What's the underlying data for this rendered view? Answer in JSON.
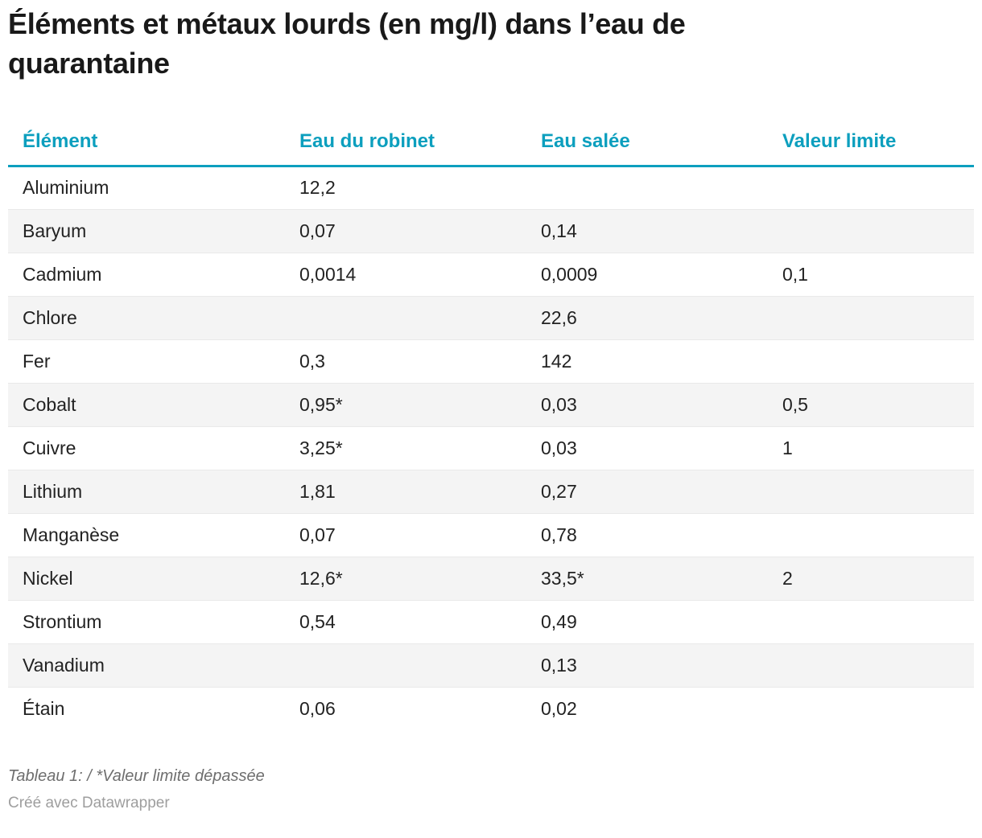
{
  "colors": {
    "accent": "#0c9fbe",
    "stripe": "#f4f4f4",
    "title_color": "#191919"
  },
  "chart_data": {
    "type": "table",
    "title": "Éléments et métaux lourds (en mg/l) dans l’eau de quarantaine",
    "columns": [
      "Élément",
      "Eau du robinet",
      "Eau salée",
      "Valeur limite"
    ],
    "rows": [
      {
        "element": "Aluminium",
        "tap_water": "12,2",
        "salt_water": "",
        "limit": ""
      },
      {
        "element": "Baryum",
        "tap_water": "0,07",
        "salt_water": "0,14",
        "limit": ""
      },
      {
        "element": "Cadmium",
        "tap_water": "0,0014",
        "salt_water": "0,0009",
        "limit": "0,1"
      },
      {
        "element": "Chlore",
        "tap_water": "",
        "salt_water": "22,6",
        "limit": ""
      },
      {
        "element": "Fer",
        "tap_water": "0,3",
        "salt_water": "142",
        "limit": ""
      },
      {
        "element": "Cobalt",
        "tap_water": "0,95*",
        "salt_water": "0,03",
        "limit": "0,5"
      },
      {
        "element": "Cuivre",
        "tap_water": "3,25*",
        "salt_water": "0,03",
        "limit": "1"
      },
      {
        "element": "Lithium",
        "tap_water": "1,81",
        "salt_water": "0,27",
        "limit": ""
      },
      {
        "element": "Manganèse",
        "tap_water": "0,07",
        "salt_water": "0,78",
        "limit": ""
      },
      {
        "element": "Nickel",
        "tap_water": "12,6*",
        "salt_water": "33,5*",
        "limit": "2"
      },
      {
        "element": "Strontium",
        "tap_water": "0,54",
        "salt_water": "0,49",
        "limit": ""
      },
      {
        "element": "Vanadium",
        "tap_water": "",
        "salt_water": "0,13",
        "limit": ""
      },
      {
        "element": "Étain",
        "tap_water": "0,06",
        "salt_water": "0,02",
        "limit": ""
      }
    ],
    "footnote": "Tableau 1: / *Valeur limite dépassée",
    "credit": "Créé avec Datawrapper"
  }
}
